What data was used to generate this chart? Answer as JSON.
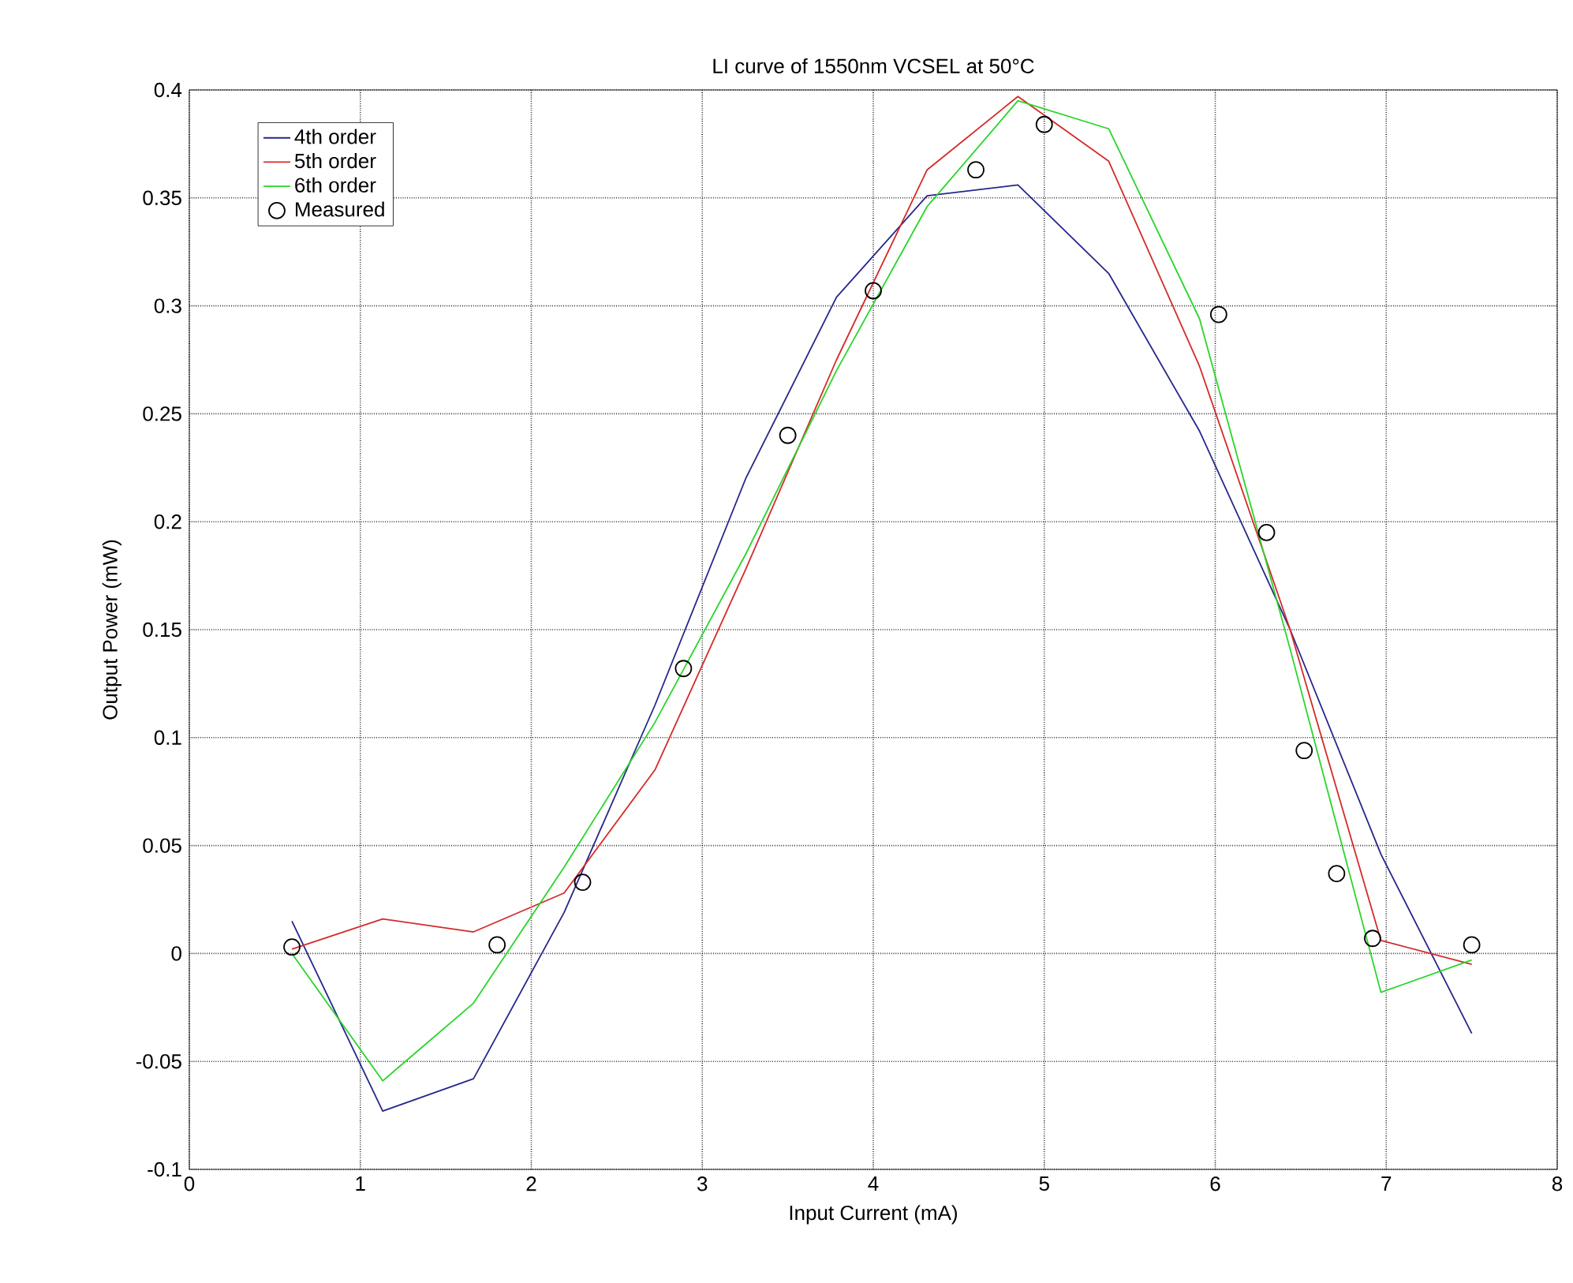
{
  "chart_data": {
    "type": "line",
    "title": "LI curve of 1550nm VCSEL at 50°C",
    "xlabel": "Input Current (mA)",
    "ylabel": "Output Power (mW)",
    "xlim": [
      0,
      8
    ],
    "ylim": [
      -0.1,
      0.4
    ],
    "xticks": [
      0,
      1,
      2,
      3,
      4,
      5,
      6,
      7,
      8
    ],
    "yticks": [
      -0.1,
      -0.05,
      0,
      0.05,
      0.1,
      0.15,
      0.2,
      0.25,
      0.3,
      0.35,
      0.4
    ],
    "grid": true,
    "legend": "top left",
    "series": [
      {
        "name": "4th order",
        "color": "#26268c",
        "x": [
          0.6,
          1.131,
          1.662,
          2.192,
          2.723,
          3.254,
          3.785,
          4.315,
          4.846,
          5.377,
          5.908,
          6.438,
          6.969,
          7.5
        ],
        "values": [
          0.015,
          -0.073,
          -0.058,
          0.019,
          0.115,
          0.22,
          0.304,
          0.351,
          0.356,
          0.315,
          0.242,
          0.15,
          0.046,
          -0.037
        ]
      },
      {
        "name": "5th order",
        "color": "#d42a2a",
        "x": [
          0.6,
          1.131,
          1.662,
          2.192,
          2.723,
          3.254,
          3.785,
          4.315,
          4.846,
          5.377,
          5.908,
          6.438,
          6.969,
          7.5
        ],
        "values": [
          0.002,
          0.016,
          0.01,
          0.028,
          0.085,
          0.178,
          0.275,
          0.363,
          0.397,
          0.367,
          0.272,
          0.15,
          0.006,
          -0.005
        ]
      },
      {
        "name": "6th order",
        "color": "#2ad42a",
        "x": [
          0.6,
          1.131,
          1.662,
          2.192,
          2.723,
          3.254,
          3.785,
          4.315,
          4.846,
          5.377,
          5.908,
          6.438,
          6.969,
          7.5
        ],
        "values": [
          0.0,
          -0.059,
          -0.023,
          0.04,
          0.107,
          0.185,
          0.27,
          0.346,
          0.395,
          0.382,
          0.294,
          0.141,
          -0.018,
          -0.003
        ]
      },
      {
        "name": "Measured",
        "type": "scatter",
        "marker": "circle",
        "color": "#000000",
        "x": [
          0.6,
          1.8,
          2.3,
          2.89,
          3.5,
          4.0,
          4.6,
          5.0,
          6.02,
          6.3,
          6.52,
          6.71,
          6.92,
          7.5
        ],
        "values": [
          0.003,
          0.004,
          0.033,
          0.132,
          0.24,
          0.307,
          0.363,
          0.384,
          0.296,
          0.195,
          0.094,
          0.037,
          0.007,
          0.004
        ]
      }
    ]
  }
}
